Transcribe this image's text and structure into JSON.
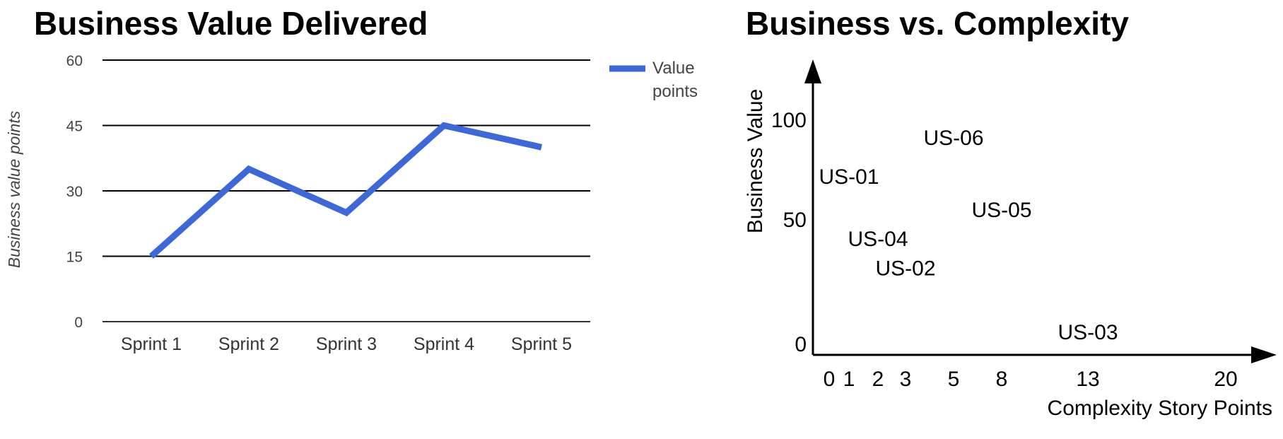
{
  "charts": [
    {
      "title": "Business Value Delivered",
      "chart_data": {
        "type": "line",
        "categories": [
          "Sprint 1",
          "Sprint 2",
          "Sprint 3",
          "Sprint 4",
          "Sprint 5"
        ],
        "series": [
          {
            "name": "Value points",
            "values": [
              15,
              35,
              25,
              45,
              40
            ],
            "color": "#3c68d8"
          }
        ],
        "ylabel": "Business value points",
        "ylim": [
          0,
          60
        ],
        "yticks": [
          0,
          15,
          30,
          45,
          60
        ],
        "grid": true,
        "legend": "right"
      }
    },
    {
      "title": "Business vs. Complexity",
      "chart_data": {
        "type": "scatter",
        "xlabel": "Complexity Story Points",
        "ylabel": "Business Value",
        "xticks": [
          "0",
          "1",
          "2",
          "3",
          "5",
          "8",
          "13",
          "20"
        ],
        "yticks": [
          "0",
          "50",
          "100"
        ],
        "points": [
          {
            "label": "US-01",
            "x": 1,
            "y": 80
          },
          {
            "label": "US-02",
            "x": 3,
            "y": 33
          },
          {
            "label": "US-03",
            "x": 13,
            "y": 0
          },
          {
            "label": "US-04",
            "x": 2,
            "y": 48
          },
          {
            "label": "US-05",
            "x": 8,
            "y": 63
          },
          {
            "label": "US-06",
            "x": 5,
            "y": 100
          }
        ],
        "grid": false
      }
    }
  ]
}
